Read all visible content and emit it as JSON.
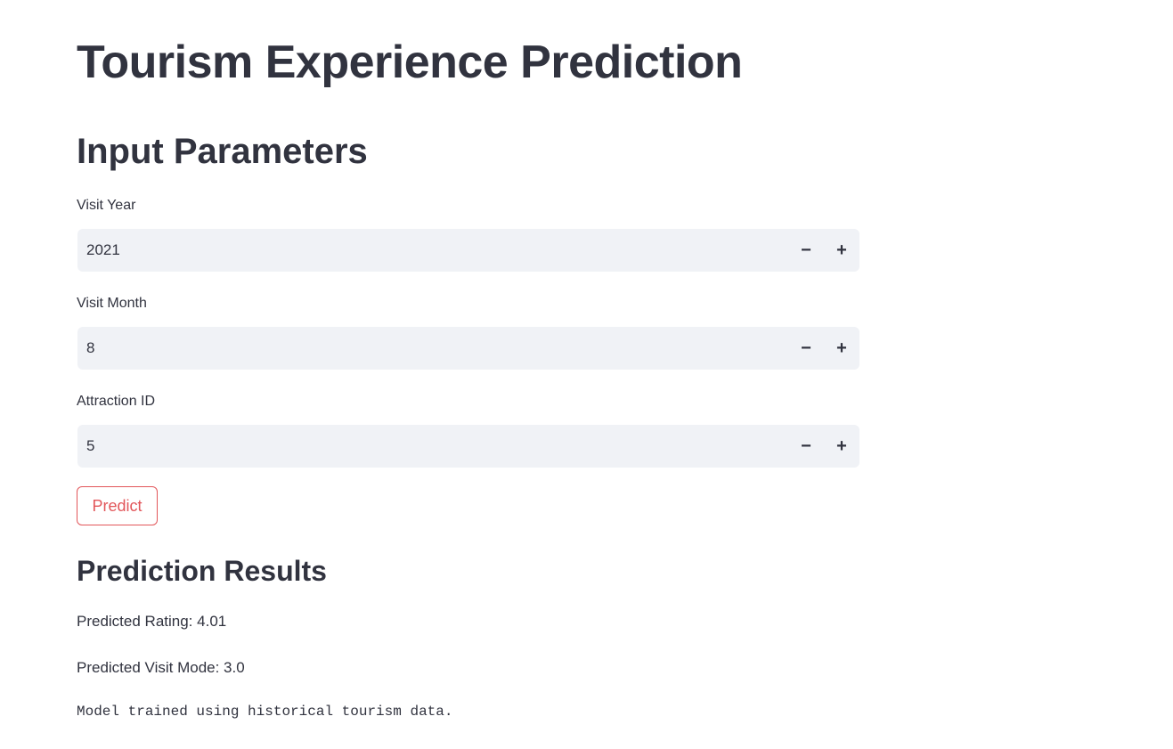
{
  "page": {
    "title": "Tourism Experience Prediction"
  },
  "inputs": {
    "section_title": "Input Parameters",
    "visit_year": {
      "label": "Visit Year",
      "value": "2021"
    },
    "visit_month": {
      "label": "Visit Month",
      "value": "8"
    },
    "attraction_id": {
      "label": "Attraction ID",
      "value": "5"
    },
    "stepper": {
      "minus": "−",
      "plus": "+"
    }
  },
  "actions": {
    "predict_label": "Predict"
  },
  "results": {
    "section_title": "Prediction Results",
    "rating_prefix": "Predicted Rating: ",
    "rating_value": "4.01",
    "visit_mode_prefix": "Predicted Visit Mode: ",
    "visit_mode_value": "3.0",
    "note": "Model trained using historical tourism data."
  },
  "colors": {
    "text": "#31333f",
    "input_bg": "#f0f2f6",
    "accent": "#e2565a",
    "background": "#ffffff"
  }
}
